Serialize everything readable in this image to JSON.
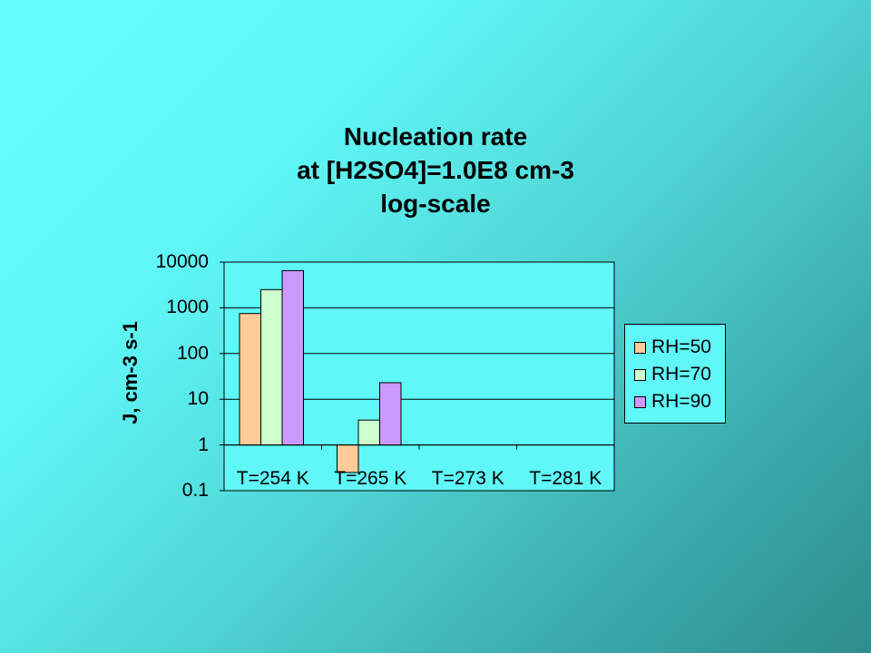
{
  "chart_data": {
    "type": "bar",
    "title_lines": [
      "Nucleation rate",
      "at [H2SO4]=1.0E8 cm-3",
      "log-scale"
    ],
    "xlabel": "",
    "ylabel": "J, cm-3 s-1",
    "yscale": "log",
    "ylim": [
      0.1,
      10000
    ],
    "yticks": [
      "10000",
      "1000",
      "100",
      "10",
      "1",
      "0.1"
    ],
    "grid": true,
    "legend_position": "right",
    "categories": [
      "T=254 K",
      "T=265 K",
      "T=273 K",
      "T=281 K"
    ],
    "series": [
      {
        "name": "RH=50",
        "color": "#ffcc99",
        "values": [
          750,
          0.25,
          null,
          null
        ]
      },
      {
        "name": "RH=70",
        "color": "#ccffcc",
        "values": [
          2500,
          3.5,
          null,
          null
        ]
      },
      {
        "name": "RH=90",
        "color": "#cc99ff",
        "values": [
          6500,
          23,
          null,
          null
        ]
      }
    ]
  }
}
